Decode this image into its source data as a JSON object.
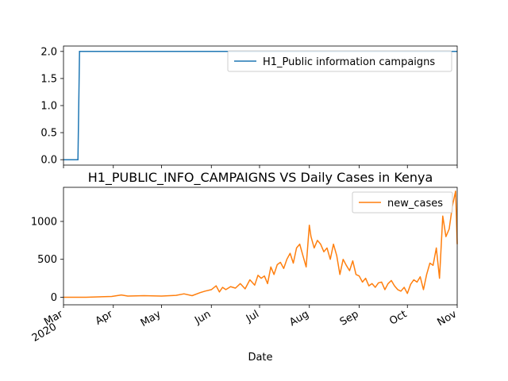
{
  "chart_data": [
    {
      "type": "line",
      "title": "",
      "xlabel": "",
      "ylabel": "",
      "ylim": [
        -0.1,
        2.1
      ],
      "yticks": [
        "0.0",
        "0.5",
        "1.0",
        "1.5",
        "2.0"
      ],
      "legend_position": "top-right",
      "grid": false,
      "series": [
        {
          "name": "H1_Public information campaigns",
          "color": "#1f77b4",
          "x": [
            "2020-03-01",
            "2020-03-10",
            "2020-03-11",
            "2020-11-01"
          ],
          "y": [
            0,
            0,
            2,
            2
          ]
        }
      ]
    },
    {
      "type": "line",
      "title": "H1_PUBLIC_INFO_CAMPAIGNS VS Daily Cases in Kenya",
      "xlabel": "Date",
      "ylabel": "",
      "ylim": [
        -100,
        1450
      ],
      "yticks": [
        "0",
        "500",
        "1000"
      ],
      "xlim": [
        "2020-03-01",
        "2020-11-01"
      ],
      "xtick_labels": [
        {
          "label": "Mar",
          "sub": "2020",
          "date": "2020-03-01"
        },
        {
          "label": "Apr",
          "sub": "",
          "date": "2020-04-01"
        },
        {
          "label": "May",
          "sub": "",
          "date": "2020-05-01"
        },
        {
          "label": "Jun",
          "sub": "",
          "date": "2020-06-01"
        },
        {
          "label": "Jul",
          "sub": "",
          "date": "2020-07-01"
        },
        {
          "label": "Aug",
          "sub": "",
          "date": "2020-08-01"
        },
        {
          "label": "Sep",
          "sub": "",
          "date": "2020-09-01"
        },
        {
          "label": "Oct",
          "sub": "",
          "date": "2020-10-01"
        },
        {
          "label": "Nov",
          "sub": "",
          "date": "2020-11-01"
        }
      ],
      "legend_position": "top-right",
      "grid": false,
      "series": [
        {
          "name": "new_cases",
          "color": "#ff7f0e",
          "x": [
            "2020-03-01",
            "2020-03-15",
            "2020-03-31",
            "2020-04-06",
            "2020-04-10",
            "2020-04-20",
            "2020-05-01",
            "2020-05-10",
            "2020-05-15",
            "2020-05-20",
            "2020-05-25",
            "2020-05-28",
            "2020-06-01",
            "2020-06-04",
            "2020-06-06",
            "2020-06-08",
            "2020-06-10",
            "2020-06-13",
            "2020-06-16",
            "2020-06-19",
            "2020-06-22",
            "2020-06-25",
            "2020-06-28",
            "2020-06-30",
            "2020-07-02",
            "2020-07-04",
            "2020-07-06",
            "2020-07-08",
            "2020-07-10",
            "2020-07-12",
            "2020-07-14",
            "2020-07-16",
            "2020-07-18",
            "2020-07-20",
            "2020-07-22",
            "2020-07-24",
            "2020-07-26",
            "2020-07-28",
            "2020-07-30",
            "2020-08-01",
            "2020-08-02",
            "2020-08-04",
            "2020-08-06",
            "2020-08-08",
            "2020-08-10",
            "2020-08-12",
            "2020-08-14",
            "2020-08-16",
            "2020-08-18",
            "2020-08-20",
            "2020-08-22",
            "2020-08-24",
            "2020-08-26",
            "2020-08-28",
            "2020-08-30",
            "2020-09-01",
            "2020-09-03",
            "2020-09-05",
            "2020-09-07",
            "2020-09-09",
            "2020-09-11",
            "2020-09-13",
            "2020-09-15",
            "2020-09-17",
            "2020-09-19",
            "2020-09-21",
            "2020-09-23",
            "2020-09-25",
            "2020-09-27",
            "2020-09-29",
            "2020-10-01",
            "2020-10-03",
            "2020-10-05",
            "2020-10-07",
            "2020-10-09",
            "2020-10-11",
            "2020-10-13",
            "2020-10-15",
            "2020-10-17",
            "2020-10-19",
            "2020-10-21",
            "2020-10-23",
            "2020-10-25",
            "2020-10-27",
            "2020-10-29",
            "2020-10-31",
            "2020-11-01"
          ],
          "y": [
            0,
            0,
            10,
            30,
            15,
            20,
            15,
            25,
            45,
            20,
            60,
            80,
            100,
            150,
            70,
            130,
            100,
            140,
            120,
            180,
            110,
            230,
            160,
            290,
            250,
            280,
            180,
            400,
            300,
            430,
            460,
            380,
            500,
            580,
            450,
            650,
            700,
            550,
            400,
            950,
            800,
            650,
            750,
            700,
            600,
            650,
            500,
            700,
            550,
            300,
            500,
            420,
            350,
            480,
            300,
            280,
            200,
            250,
            150,
            180,
            130,
            190,
            200,
            100,
            180,
            220,
            150,
            100,
            80,
            130,
            50,
            170,
            230,
            200,
            270,
            100,
            300,
            450,
            420,
            650,
            250,
            1070,
            800,
            900,
            1200,
            1400,
            700
          ]
        }
      ]
    }
  ]
}
